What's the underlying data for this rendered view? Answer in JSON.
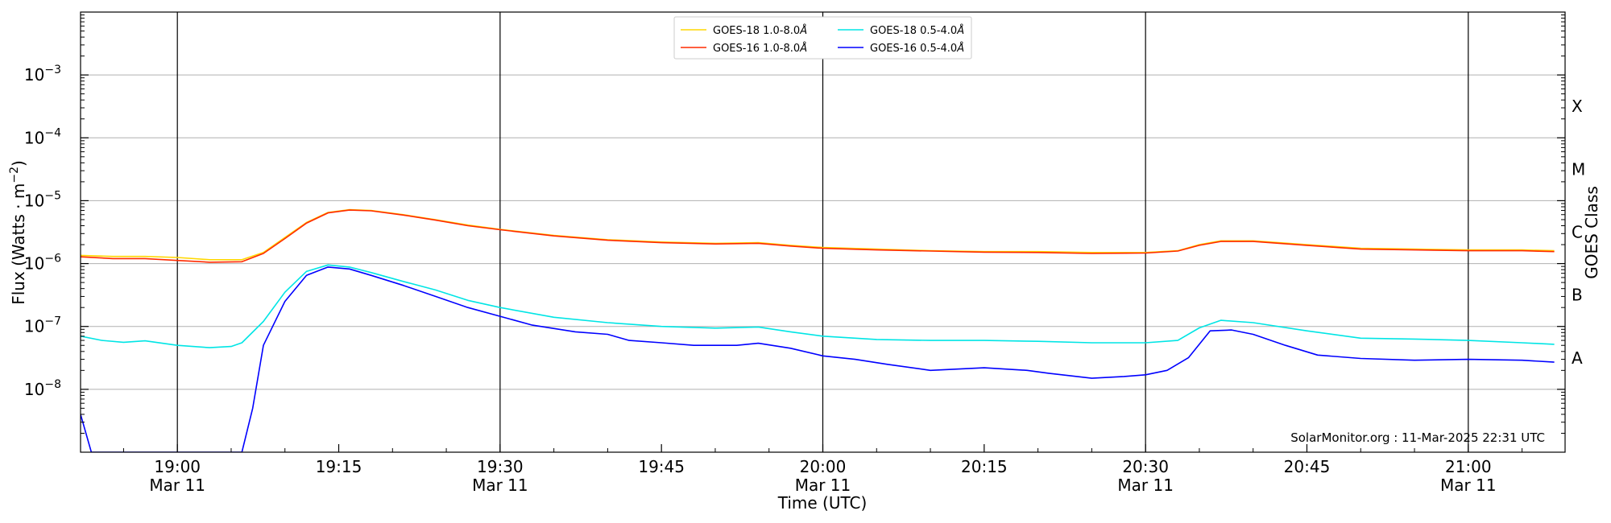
{
  "chart_data": {
    "type": "line",
    "xlabel": "Time (UTC)",
    "ylabel_text": "Flux (Watts · m",
    "ylabel_exp": "−2",
    "ylabel_close": ")",
    "right_label": "GOES Class",
    "credit": "SolarMonitor.org : 11-Mar-2025 22:31 UTC",
    "log_y": true,
    "grid": "horizontal at decades",
    "legend_position": "top-center",
    "x_range_minutes": [
      "18:51",
      "21:09"
    ],
    "y_range": [
      1e-09,
      0.01
    ],
    "x_ticks": [
      {
        "t": "19:00",
        "l1": "19:00",
        "l2": "Mar 11"
      },
      {
        "t": "19:15",
        "l1": "19:15",
        "l2": ""
      },
      {
        "t": "19:30",
        "l1": "19:30",
        "l2": "Mar 11"
      },
      {
        "t": "19:45",
        "l1": "19:45",
        "l2": ""
      },
      {
        "t": "20:00",
        "l1": "20:00",
        "l2": "Mar 11"
      },
      {
        "t": "20:15",
        "l1": "20:15",
        "l2": ""
      },
      {
        "t": "20:30",
        "l1": "20:30",
        "l2": "Mar 11"
      },
      {
        "t": "20:45",
        "l1": "20:45",
        "l2": ""
      },
      {
        "t": "21:00",
        "l1": "21:00",
        "l2": "Mar 11"
      }
    ],
    "y_ticks": [
      {
        "v": 1e-08,
        "mant": "10",
        "exp": "−8"
      },
      {
        "v": 1e-07,
        "mant": "10",
        "exp": "−7"
      },
      {
        "v": 1e-06,
        "mant": "10",
        "exp": "−6"
      },
      {
        "v": 1e-05,
        "mant": "10",
        "exp": "−5"
      },
      {
        "v": 0.0001,
        "mant": "10",
        "exp": "−4"
      },
      {
        "v": 0.001,
        "mant": "10",
        "exp": "−3"
      }
    ],
    "goes_classes": [
      {
        "label": "A",
        "v": 3.16e-08
      },
      {
        "label": "B",
        "v": 3.16e-07
      },
      {
        "label": "C",
        "v": 3.16e-06
      },
      {
        "label": "M",
        "v": 3.16e-05
      },
      {
        "label": "X",
        "v": 0.000316
      }
    ],
    "series": [
      {
        "name": "GOES-18 1.0-8.0Å",
        "name_main": "GOES-18 1.0-8.0",
        "name_unit": "Å",
        "color": "#ffd700",
        "points": [
          [
            "18:51",
            1.35e-06
          ],
          [
            "18:54",
            1.3e-06
          ],
          [
            "18:57",
            1.3e-06
          ],
          [
            "19:00",
            1.25e-06
          ],
          [
            "19:03",
            1.15e-06
          ],
          [
            "19:06",
            1.15e-06
          ],
          [
            "19:08",
            1.5e-06
          ],
          [
            "19:10",
            2.6e-06
          ],
          [
            "19:12",
            4.5e-06
          ],
          [
            "19:14",
            6.5e-06
          ],
          [
            "19:16",
            7.2e-06
          ],
          [
            "19:18",
            7e-06
          ],
          [
            "19:21",
            6e-06
          ],
          [
            "19:24",
            5e-06
          ],
          [
            "19:27",
            4.1e-06
          ],
          [
            "19:30",
            3.5e-06
          ],
          [
            "19:35",
            2.8e-06
          ],
          [
            "19:40",
            2.4e-06
          ],
          [
            "19:45",
            2.2e-06
          ],
          [
            "19:50",
            2.1e-06
          ],
          [
            "19:54",
            2.15e-06
          ],
          [
            "19:57",
            1.95e-06
          ],
          [
            "20:00",
            1.8e-06
          ],
          [
            "20:05",
            1.7e-06
          ],
          [
            "20:10",
            1.6e-06
          ],
          [
            "20:15",
            1.55e-06
          ],
          [
            "20:20",
            1.55e-06
          ],
          [
            "20:25",
            1.5e-06
          ],
          [
            "20:30",
            1.5e-06
          ],
          [
            "20:33",
            1.6e-06
          ],
          [
            "20:35",
            2e-06
          ],
          [
            "20:37",
            2.3e-06
          ],
          [
            "20:40",
            2.3e-06
          ],
          [
            "20:45",
            2e-06
          ],
          [
            "20:50",
            1.75e-06
          ],
          [
            "20:55",
            1.7e-06
          ],
          [
            "21:00",
            1.65e-06
          ],
          [
            "21:05",
            1.65e-06
          ],
          [
            "21:08",
            1.6e-06
          ]
        ]
      },
      {
        "name": "GOES-16 1.0-8.0Å",
        "name_main": "GOES-16 1.0-8.0",
        "name_unit": "Å",
        "color": "#ff2a00",
        "points": [
          [
            "18:51",
            1.28e-06
          ],
          [
            "18:54",
            1.2e-06
          ],
          [
            "18:57",
            1.2e-06
          ],
          [
            "19:00",
            1.12e-06
          ],
          [
            "19:03",
            1.05e-06
          ],
          [
            "19:06",
            1.07e-06
          ],
          [
            "19:08",
            1.45e-06
          ],
          [
            "19:10",
            2.5e-06
          ],
          [
            "19:12",
            4.4e-06
          ],
          [
            "19:14",
            6.4e-06
          ],
          [
            "19:16",
            7.1e-06
          ],
          [
            "19:18",
            6.9e-06
          ],
          [
            "19:21",
            5.9e-06
          ],
          [
            "19:24",
            4.9e-06
          ],
          [
            "19:27",
            4e-06
          ],
          [
            "19:30",
            3.45e-06
          ],
          [
            "19:35",
            2.75e-06
          ],
          [
            "19:40",
            2.35e-06
          ],
          [
            "19:45",
            2.15e-06
          ],
          [
            "19:50",
            2.05e-06
          ],
          [
            "19:54",
            2.1e-06
          ],
          [
            "19:57",
            1.9e-06
          ],
          [
            "20:00",
            1.75e-06
          ],
          [
            "20:05",
            1.65e-06
          ],
          [
            "20:10",
            1.58e-06
          ],
          [
            "20:15",
            1.52e-06
          ],
          [
            "20:20",
            1.5e-06
          ],
          [
            "20:25",
            1.45e-06
          ],
          [
            "20:30",
            1.47e-06
          ],
          [
            "20:33",
            1.58e-06
          ],
          [
            "20:35",
            1.95e-06
          ],
          [
            "20:37",
            2.25e-06
          ],
          [
            "20:40",
            2.25e-06
          ],
          [
            "20:45",
            1.95e-06
          ],
          [
            "20:50",
            1.7e-06
          ],
          [
            "20:55",
            1.65e-06
          ],
          [
            "21:00",
            1.6e-06
          ],
          [
            "21:05",
            1.6e-06
          ],
          [
            "21:08",
            1.55e-06
          ]
        ]
      },
      {
        "name": "GOES-18 0.5-4.0Å",
        "name_main": "GOES-18 0.5-4.0",
        "name_unit": "Å",
        "color": "#00e5e5",
        "points": [
          [
            "18:51",
            7e-08
          ],
          [
            "18:53",
            6e-08
          ],
          [
            "18:55",
            5.6e-08
          ],
          [
            "18:57",
            5.9e-08
          ],
          [
            "19:00",
            5e-08
          ],
          [
            "19:03",
            4.6e-08
          ],
          [
            "19:05",
            4.8e-08
          ],
          [
            "19:06",
            5.5e-08
          ],
          [
            "19:08",
            1.2e-07
          ],
          [
            "19:10",
            3.5e-07
          ],
          [
            "19:12",
            7.5e-07
          ],
          [
            "19:14",
            9.5e-07
          ],
          [
            "19:16",
            8.8e-07
          ],
          [
            "19:18",
            7.2e-07
          ],
          [
            "19:21",
            5.2e-07
          ],
          [
            "19:24",
            3.8e-07
          ],
          [
            "19:27",
            2.6e-07
          ],
          [
            "19:30",
            2e-07
          ],
          [
            "19:35",
            1.4e-07
          ],
          [
            "19:40",
            1.15e-07
          ],
          [
            "19:45",
            1e-07
          ],
          [
            "19:50",
            9.4e-08
          ],
          [
            "19:54",
            9.8e-08
          ],
          [
            "19:57",
            8.2e-08
          ],
          [
            "20:00",
            7e-08
          ],
          [
            "20:05",
            6.2e-08
          ],
          [
            "20:10",
            6e-08
          ],
          [
            "20:15",
            6e-08
          ],
          [
            "20:20",
            5.8e-08
          ],
          [
            "20:25",
            5.5e-08
          ],
          [
            "20:30",
            5.5e-08
          ],
          [
            "20:33",
            6e-08
          ],
          [
            "20:35",
            9.5e-08
          ],
          [
            "20:37",
            1.25e-07
          ],
          [
            "20:40",
            1.15e-07
          ],
          [
            "20:45",
            8.5e-08
          ],
          [
            "20:50",
            6.5e-08
          ],
          [
            "20:55",
            6.3e-08
          ],
          [
            "21:00",
            6e-08
          ],
          [
            "21:05",
            5.5e-08
          ],
          [
            "21:08",
            5.2e-08
          ]
        ]
      },
      {
        "name": "GOES-16 0.5-4.0Å",
        "name_main": "GOES-16 0.5-4.0",
        "name_unit": "Å",
        "color": "#0000ff",
        "points": [
          [
            "18:51",
            4e-09
          ],
          [
            "18:52",
            1e-09
          ],
          [
            "19:06",
            1e-09
          ],
          [
            "19:07",
            5e-09
          ],
          [
            "19:08",
            5e-08
          ],
          [
            "19:10",
            2.5e-07
          ],
          [
            "19:12",
            6.5e-07
          ],
          [
            "19:14",
            8.8e-07
          ],
          [
            "19:16",
            8.2e-07
          ],
          [
            "19:18",
            6.5e-07
          ],
          [
            "19:21",
            4.5e-07
          ],
          [
            "19:24",
            3e-07
          ],
          [
            "19:27",
            2e-07
          ],
          [
            "19:30",
            1.45e-07
          ],
          [
            "19:33",
            1.05e-07
          ],
          [
            "19:37",
            8.2e-08
          ],
          [
            "19:40",
            7.5e-08
          ],
          [
            "19:42",
            6e-08
          ],
          [
            "19:45",
            5.5e-08
          ],
          [
            "19:48",
            5e-08
          ],
          [
            "19:52",
            5e-08
          ],
          [
            "19:54",
            5.4e-08
          ],
          [
            "19:57",
            4.5e-08
          ],
          [
            "20:00",
            3.4e-08
          ],
          [
            "20:03",
            3e-08
          ],
          [
            "20:06",
            2.5e-08
          ],
          [
            "20:10",
            2e-08
          ],
          [
            "20:15",
            2.2e-08
          ],
          [
            "20:19",
            2e-08
          ],
          [
            "20:21",
            1.8e-08
          ],
          [
            "20:25",
            1.5e-08
          ],
          [
            "20:28",
            1.6e-08
          ],
          [
            "20:30",
            1.7e-08
          ],
          [
            "20:32",
            2e-08
          ],
          [
            "20:34",
            3.2e-08
          ],
          [
            "20:36",
            8.5e-08
          ],
          [
            "20:38",
            8.8e-08
          ],
          [
            "20:40",
            7.5e-08
          ],
          [
            "20:43",
            5e-08
          ],
          [
            "20:46",
            3.5e-08
          ],
          [
            "20:50",
            3.1e-08
          ],
          [
            "20:55",
            2.9e-08
          ],
          [
            "21:00",
            3e-08
          ],
          [
            "21:05",
            2.9e-08
          ],
          [
            "21:08",
            2.7e-08
          ]
        ]
      }
    ]
  }
}
